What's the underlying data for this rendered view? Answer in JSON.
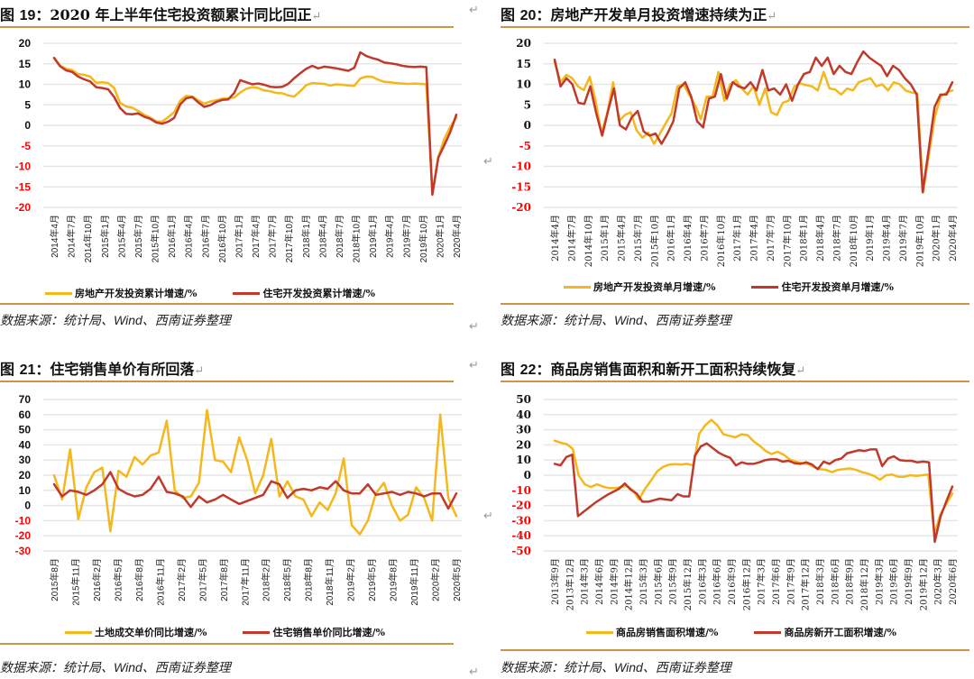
{
  "colors": {
    "yellow": "#f5b81c",
    "red": "#c0392b",
    "rule": "#c8964a",
    "negative": "#ff0000",
    "grid": "#e6e6e6"
  },
  "paragraph_mark": "↵",
  "panels": [
    {
      "title_prefix": "图 ",
      "title_num": "19",
      "title_text": "：2020 年上半年住宅投资额累计同比回正",
      "source_a": "数据来源：统计局、",
      "source_w": "Wind",
      "source_b": "、西南证券整理"
    },
    {
      "title_prefix": "图 ",
      "title_num": "20",
      "title_text": "：房地产开发单月投资增速持续为正",
      "source_a": "数据来源：统计局、",
      "source_w": "Wind",
      "source_b": "、西南证券整理"
    },
    {
      "title_prefix": "图 ",
      "title_num": "21",
      "title_text": "：住宅销售单价有所回落",
      "source_a": "数据来源：统计局、",
      "source_w": "Wind",
      "source_b": "、西南证券整理"
    },
    {
      "title_prefix": "图 ",
      "title_num": "22",
      "title_text": "：商品房销售面积和新开工面积持续恢复",
      "source_a": "数据来源：统计局、",
      "source_w": "Wind",
      "source_b": "、西南证券整理"
    }
  ],
  "chart_data": [
    {
      "type": "line",
      "title": "2020 年上半年住宅投资额累计同比回正",
      "ylim": [
        -20,
        20
      ],
      "yticks": [
        20,
        15,
        10,
        5,
        0,
        -5,
        -10,
        -15,
        -20
      ],
      "grid": true,
      "legend": "bottom",
      "tick_labels": [
        "2014年4月",
        "2014年7月",
        "2014年10月",
        "2015年1月",
        "2015年4月",
        "2015年7月",
        "2015年10月",
        "2016年1月",
        "2016年4月",
        "2016年7月",
        "2016年10月",
        "2017年1月",
        "2017年4月",
        "2017年7月",
        "2017年10月",
        "2018年1月",
        "2018年4月",
        "2018年7月",
        "2018年10月",
        "2019年1月",
        "2019年4月",
        "2019年7月",
        "2019年10月",
        "2020年1月",
        "2020年4月"
      ],
      "series": [
        {
          "name": "房地产开发投资累计增速/%",
          "color": "#f5b81c",
          "values": [
            16.5,
            14.5,
            13.8,
            13.5,
            12.5,
            12.3,
            11.9,
            10.4,
            10.5,
            10.3,
            9.1,
            5.5,
            4.6,
            4.3,
            3.5,
            2.6,
            1.9,
            1.0,
            0.9,
            2.0,
            3.2,
            6.0,
            7.2,
            7.0,
            6.1,
            5.3,
            5.8,
            6.1,
            6.5,
            6.6,
            6.8,
            8.0,
            8.9,
            9.3,
            9.1,
            8.5,
            8.3,
            7.9,
            7.8,
            7.3,
            7.0,
            8.3,
            9.8,
            10.3,
            10.2,
            10.1,
            9.7,
            10.0,
            9.9,
            9.7,
            9.6,
            11.4,
            11.9,
            11.8,
            11.1,
            10.6,
            10.5,
            10.3,
            10.2,
            10.1,
            10.2,
            10.1,
            10.0,
            -16.3,
            -7.7,
            -3.3,
            -0.3,
            1.9
          ],
          "note": "values approximated monthly"
        },
        {
          "name": "住宅开发投资累计增速/%",
          "color": "#c0392b",
          "values": [
            16.4,
            14.4,
            13.4,
            13.0,
            11.9,
            11.2,
            10.7,
            9.3,
            9.1,
            8.8,
            6.9,
            4.2,
            2.8,
            2.7,
            2.9,
            2.1,
            1.6,
            0.7,
            0.4,
            0.9,
            1.8,
            5.1,
            6.6,
            6.9,
            5.6,
            4.5,
            4.9,
            5.7,
            6.2,
            6.3,
            7.9,
            11.0,
            10.5,
            10.0,
            10.2,
            9.9,
            9.4,
            9.3,
            9.4,
            10.1,
            11.5,
            12.7,
            13.8,
            14.5,
            13.9,
            14.3,
            14.1,
            13.9,
            13.6,
            13.3,
            14.0,
            17.8,
            16.9,
            16.4,
            16.0,
            15.3,
            15.1,
            14.9,
            14.5,
            14.3,
            14.2,
            14.3,
            14.2,
            -16.9,
            -7.9,
            -4.8,
            -1.6,
            2.6
          ]
        }
      ]
    },
    {
      "type": "line",
      "title": "房地产开发单月投资增速持续为正",
      "ylim": [
        -20,
        20
      ],
      "yticks": [
        20,
        15,
        10,
        5,
        0,
        -5,
        -10,
        -15,
        -20
      ],
      "grid": true,
      "legend": "bottom",
      "tick_labels": [
        "2014年4月",
        "2014年7月",
        "2014年10月",
        "2015年1月",
        "2015年4月",
        "2015年7月",
        "2015年10月",
        "2016年1月",
        "2016年4月",
        "2016年7月",
        "2016年10月",
        "2017年1月",
        "2017年4月",
        "2017年7月",
        "2017年10月",
        "2018年1月",
        "2018年4月",
        "2018年7月",
        "2018年10月",
        "2019年1月",
        "2019年4月",
        "2019年7月",
        "2019年10月",
        "2020年1月",
        "2020年4月"
      ],
      "series": [
        {
          "name": "房地产开发投资单月增速/%",
          "color": "#f5b81c",
          "values": [
            15.5,
            10.5,
            12.3,
            11.5,
            9.5,
            8.6,
            11.8,
            6.0,
            -2.0,
            3.0,
            10.5,
            1.0,
            2.5,
            3.2,
            -1.2,
            -3.0,
            -1.8,
            -4.5,
            -2.0,
            0.5,
            3.0,
            9.5,
            10.0,
            7.5,
            5.0,
            1.5,
            7.0,
            7.0,
            13.0,
            6.0,
            10.0,
            11.0,
            9.0,
            7.5,
            9.5,
            5.0,
            9.0,
            3.2,
            2.5,
            5.5,
            6.0,
            9.5,
            10.2,
            9.8,
            9.5,
            8.5,
            13.0,
            9.0,
            8.7,
            7.5,
            9.0,
            8.5,
            10.5,
            11.0,
            11.5,
            9.5,
            10.0,
            8.5,
            10.5,
            10.0,
            8.5,
            8.0,
            7.8,
            -16.3,
            -7.0,
            2.0,
            7.0,
            8.0,
            8.5
          ]
        },
        {
          "name": "住宅开发投资单月增速/%",
          "color": "#c0392b",
          "values": [
            16.0,
            9.5,
            11.5,
            10.0,
            5.5,
            5.2,
            9.5,
            3.0,
            -2.5,
            3.5,
            9.0,
            0.0,
            -1.0,
            2.0,
            3.5,
            -1.5,
            -2.5,
            -2.0,
            -4.5,
            -2.0,
            1.0,
            9.0,
            10.5,
            7.0,
            1.0,
            -0.5,
            6.5,
            7.0,
            12.5,
            6.5,
            10.5,
            9.5,
            9.0,
            10.5,
            8.5,
            13.5,
            8.5,
            9.0,
            7.5,
            10.0,
            6.0,
            10.0,
            12.5,
            13.0,
            16.5,
            14.5,
            16.5,
            12.5,
            14.5,
            13.0,
            12.5,
            15.5,
            18.0,
            16.5,
            15.5,
            14.5,
            12.0,
            14.5,
            13.5,
            11.5,
            10.0,
            7.5,
            -16.3,
            -6.0,
            4.5,
            7.5,
            7.5,
            10.5
          ]
        }
      ]
    },
    {
      "type": "line",
      "title": "住宅销售单价有所回落",
      "ylim": [
        -30,
        70
      ],
      "yticks": [
        70,
        60,
        50,
        40,
        30,
        20,
        10,
        0,
        -10,
        -20,
        -30
      ],
      "grid": true,
      "legend": "bottom",
      "tick_labels": [
        "2015年8月",
        "2015年11月",
        "2016年2月",
        "2016年5月",
        "2016年8月",
        "2016年11月",
        "2017年2月",
        "2017年5月",
        "2017年8月",
        "2017年11月",
        "2018年2月",
        "2018年5月",
        "2018年8月",
        "2018年11月",
        "2019年2月",
        "2019年5月",
        "2019年8月",
        "2019年11月",
        "2020年2月",
        "2020年5月"
      ],
      "series": [
        {
          "name": "土地成交单价同比增速/%",
          "color": "#f5b81c",
          "values": [
            20,
            4,
            37,
            -9,
            12,
            22,
            25,
            -17,
            23,
            19,
            32,
            27,
            33,
            35,
            56,
            10,
            5,
            6,
            15,
            63,
            30,
            29,
            22,
            45,
            30,
            8,
            20,
            44,
            6,
            16,
            6,
            4,
            -7,
            2,
            -3,
            8,
            31,
            -13,
            -19,
            -10,
            8,
            15,
            0,
            -10,
            -6,
            12,
            5,
            -10,
            60,
            5,
            -7
          ]
        },
        {
          "name": "住宅销售单价同比增速/%",
          "color": "#c0392b",
          "values": [
            14,
            6,
            10,
            9,
            7,
            10,
            14,
            22,
            11,
            8,
            6,
            7,
            11,
            19,
            9,
            8,
            6,
            -1,
            6,
            2,
            4,
            7,
            4,
            1,
            3,
            5,
            7,
            16,
            14,
            5,
            10,
            11,
            10,
            12,
            11,
            16,
            10,
            8,
            8,
            14,
            7,
            8,
            9,
            7,
            9,
            8,
            6,
            8,
            8,
            -2,
            8
          ]
        }
      ]
    },
    {
      "type": "line",
      "title": "商品房销售面积和新开工面积持续恢复",
      "ylim": [
        -50,
        50
      ],
      "yticks": [
        50,
        40,
        30,
        20,
        10,
        0,
        -10,
        -20,
        -30,
        -40,
        -50
      ],
      "grid": true,
      "legend": "bottom",
      "tick_labels": [
        "2013年9月",
        "2013年12月",
        "2014年3月",
        "2014年6月",
        "2014年9月",
        "2014年12月",
        "2015年3月",
        "2015年6月",
        "2015年9月",
        "2015年12月",
        "2016年3月",
        "2016年6月",
        "2016年9月",
        "2016年12月",
        "2017年3月",
        "2017年6月",
        "2017年9月",
        "2017年12月",
        "2018年3月",
        "2018年6月",
        "2018年9月",
        "2018年12月",
        "2019年3月",
        "2019年6月",
        "2019年9月",
        "2019年12月",
        "2020年3月",
        "2020年6月"
      ],
      "series": [
        {
          "name": "商品房销售面积增速/%",
          "color": "#f5b81c",
          "values": [
            22.8,
            21.5,
            20.5,
            17.5,
            -0.2,
            -6.0,
            -7.8,
            -6.0,
            -7.5,
            -8.5,
            -8.5,
            -7.8,
            -7.0,
            -10.0,
            -16.0,
            -9.0,
            -3.5,
            2.5,
            5.5,
            7.0,
            7.3,
            7.1,
            7.5,
            6.5,
            27.5,
            33.0,
            36.5,
            33.0,
            27.0,
            26.0,
            25.0,
            27.0,
            26.5,
            22.5,
            19.5,
            16.0,
            14.0,
            15.5,
            13.5,
            10.5,
            9.0,
            8.0,
            7.5,
            5.5,
            4.0,
            3.5,
            2.0,
            3.5,
            4.0,
            4.5,
            3.5,
            2.0,
            1.0,
            -0.5,
            -3.0,
            0.0,
            0.5,
            -1.0,
            -1.0,
            0.0,
            -0.5,
            0.0,
            0.5,
            -39.0,
            -26.0,
            -19.0,
            -12.0
          ]
        },
        {
          "name": "商品房新开工面积增速/%",
          "color": "#c0392b",
          "values": [
            7.5,
            6.5,
            12.0,
            13.5,
            -27.0,
            -24.0,
            -21.0,
            -18.0,
            -15.5,
            -13.0,
            -11.0,
            -9.0,
            -5.5,
            -9.5,
            -12.0,
            -17.5,
            -17.5,
            -16.5,
            -15.5,
            -16.0,
            -16.5,
            -12.5,
            -14.0,
            -14.0,
            13.0,
            19.0,
            21.0,
            18.0,
            15.0,
            13.0,
            11.5,
            6.5,
            8.5,
            7.5,
            7.5,
            8.5,
            10.0,
            10.5,
            10.5,
            9.0,
            9.5,
            8.0,
            7.5,
            8.5,
            7.0,
            4.0,
            9.0,
            7.5,
            10.0,
            11.0,
            14.5,
            15.5,
            16.5,
            16.0,
            17.0,
            17.0,
            6.0,
            11.0,
            12.5,
            10.0,
            9.5,
            9.5,
            8.5,
            9.0,
            8.5,
            -44.0,
            -27.0,
            -17.0,
            -7.5
          ]
        }
      ]
    }
  ]
}
